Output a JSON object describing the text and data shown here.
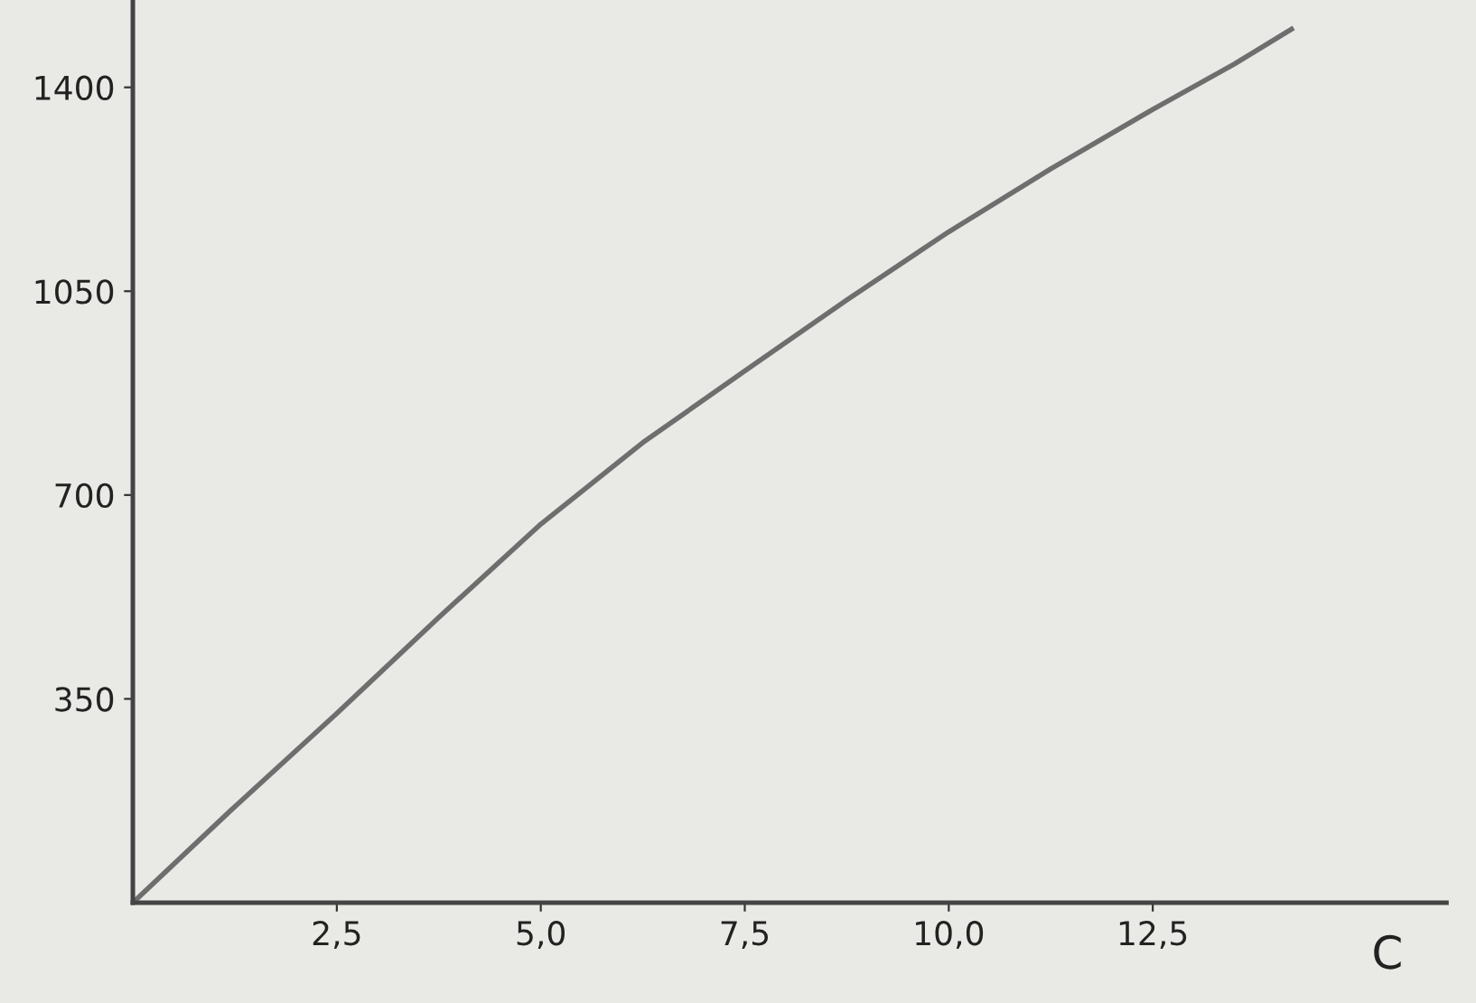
{
  "chart_data": {
    "type": "line",
    "xlabel": "C",
    "x": [
      0,
      1.25,
      2.5,
      3.75,
      5.0,
      6.25,
      7.5,
      8.75,
      10.0,
      11.25,
      12.5,
      13.5,
      14.2
    ],
    "series": [
      {
        "color": "#6e6e6e",
        "values": [
          0,
          165,
          325,
          490,
          650,
          790,
          913,
          1035,
          1152,
          1260,
          1362,
          1440,
          1500
        ]
      }
    ],
    "xlim": [
      0,
      16.1
    ],
    "ylim": [
      0,
      1550
    ],
    "xticks": [
      {
        "value": 2.5,
        "label": "2,5"
      },
      {
        "value": 5.0,
        "label": "5,0"
      },
      {
        "value": 7.5,
        "label": "7,5"
      },
      {
        "value": 10.0,
        "label": "10,0"
      },
      {
        "value": 12.5,
        "label": "12,5"
      }
    ],
    "yticks": [
      350,
      700,
      1050,
      1400
    ],
    "grid": false,
    "legend": false,
    "marker": "none",
    "line_style": "solid"
  }
}
